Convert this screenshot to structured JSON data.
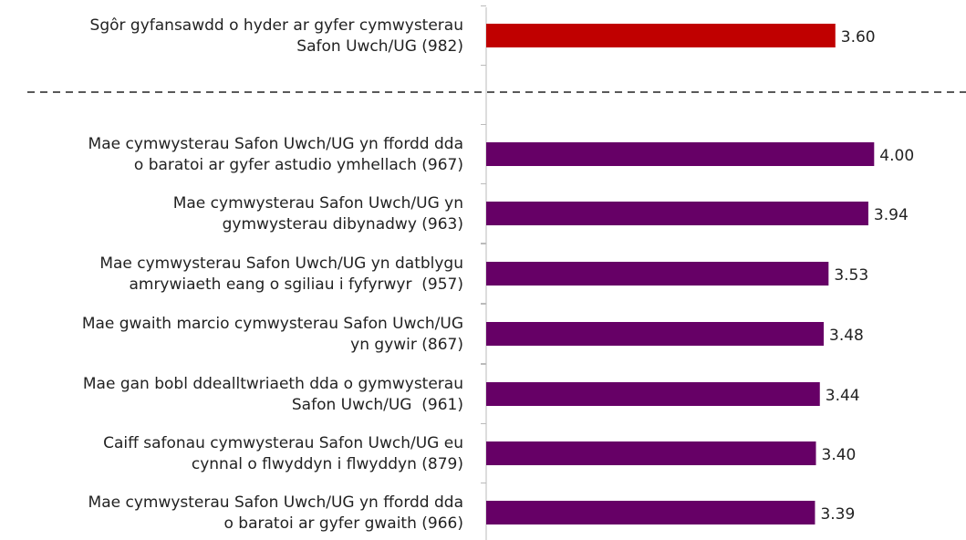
{
  "chart_data": {
    "type": "bar",
    "orientation": "horizontal",
    "categories": [
      "Sgôr gyfansawdd o hyder ar gyfer cymwysterau\nSafon Uwch/UG (982)",
      "Mae cymwysterau Safon Uwch/UG yn ffordd dda\no baratoi ar gyfer astudio ymhellach (967)",
      "Mae cymwysterau Safon Uwch/UG yn\ngymwysterau dibynadwy (963)",
      "Mae cymwysterau Safon Uwch/UG yn datblygu\namrywiaeth eang o sgiliau i fyfyrwyr  (957)",
      "Mae gwaith marcio cymwysterau Safon Uwch/UG\nyn gywir (867)",
      "Mae gan bobl ddealltwriaeth dda o gymwysterau\nSafon Uwch/UG  (961)",
      "Caiff safonau cymwysterau Safon Uwch/UG eu\ncynnal o flwyddyn i flwyddyn (879)",
      "Mae cymwysterau Safon Uwch/UG yn ffordd dda\no baratoi ar gyfer gwaith (966)"
    ],
    "values": [
      3.6,
      4.0,
      3.94,
      3.53,
      3.48,
      3.44,
      3.4,
      3.39
    ],
    "value_labels": [
      "3.60",
      "4.00",
      "3.94",
      "3.53",
      "3.48",
      "3.44",
      "3.40",
      "3.39"
    ],
    "colors": [
      "#c00000",
      "#660066",
      "#660066",
      "#660066",
      "#660066",
      "#660066",
      "#660066",
      "#660066"
    ],
    "xlim": [
      0,
      4.9
    ]
  }
}
